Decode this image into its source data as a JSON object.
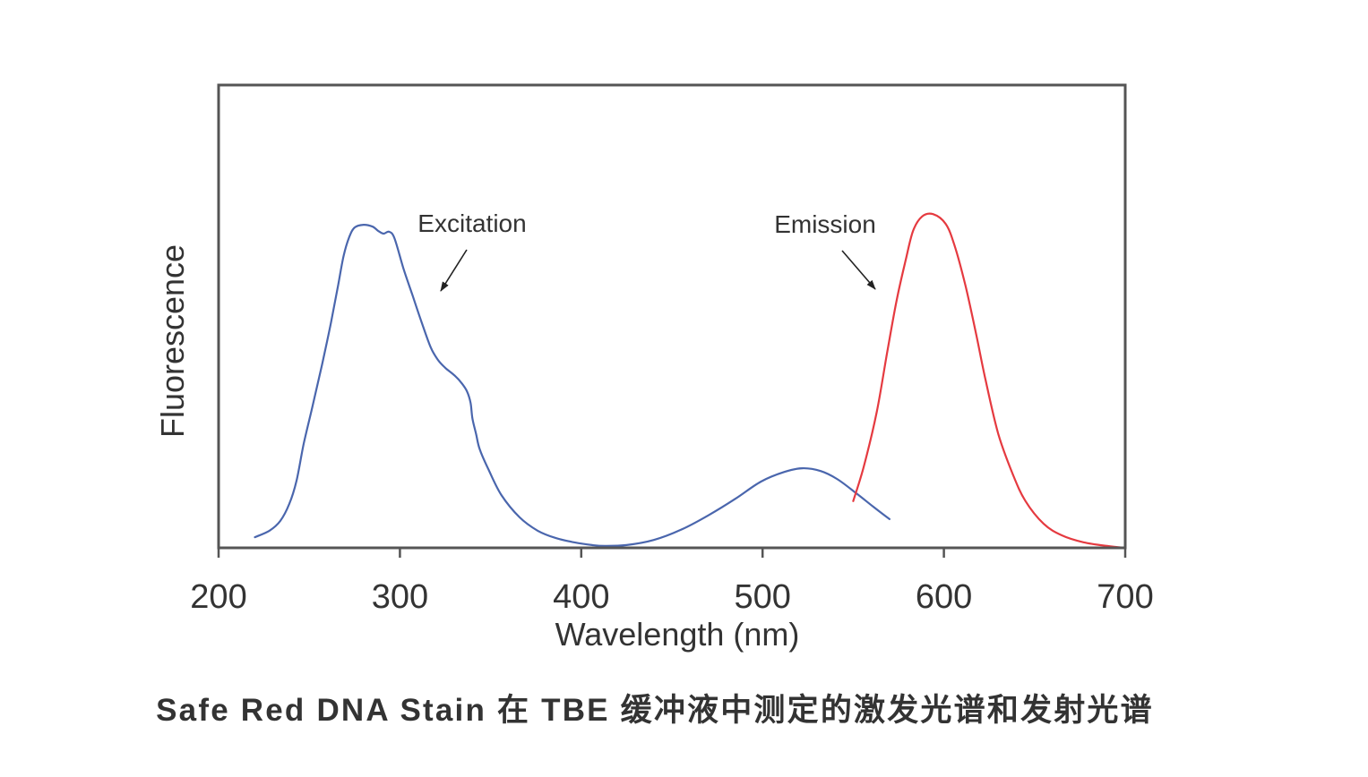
{
  "chart_data": {
    "type": "line",
    "title": "Safe Red DNA Stain 在 TBE 缓冲液中测定的激发光谱和发射光谱",
    "xlabel": "Wavelength (nm)",
    "ylabel": "Fluorescence",
    "xlim": [
      200,
      700
    ],
    "ylim": [
      0,
      100
    ],
    "x_ticks": [
      200,
      300,
      400,
      500,
      600,
      700
    ],
    "grid": false,
    "legend": "none",
    "series": [
      {
        "name": "Excitation",
        "color": "#4a66ad",
        "x": [
          220,
          228,
          234,
          239,
          243,
          247,
          252,
          257,
          262,
          266,
          269,
          272,
          275,
          280,
          285,
          288,
          291,
          294,
          297,
          302,
          307,
          312,
          317,
          321,
          325,
          330,
          334,
          337,
          339,
          340,
          342,
          344,
          349,
          356,
          366,
          376,
          386,
          396,
          406,
          413,
          425,
          440,
          455,
          470,
          485,
          499,
          512,
          522,
          532,
          541,
          551,
          561,
          570
        ],
        "y": [
          2.3,
          3.7,
          5.8,
          9.5,
          14.5,
          22.6,
          30.9,
          39.5,
          48.7,
          56.9,
          63.2,
          67.1,
          69.2,
          69.8,
          69.4,
          68.5,
          67.9,
          68.3,
          66.9,
          60.3,
          54.5,
          48.7,
          43.3,
          40.6,
          38.9,
          37.3,
          35.6,
          33.8,
          31.3,
          27.9,
          24.6,
          21.3,
          16.8,
          11.4,
          6.6,
          3.7,
          2.1,
          1.2,
          0.6,
          0.4,
          0.6,
          1.7,
          3.9,
          7.0,
          10.6,
          14.3,
          16.4,
          17.2,
          16.6,
          14.9,
          12.0,
          8.9,
          6.2
        ]
      },
      {
        "name": "Emission",
        "color": "#e53a40",
        "x": [
          550,
          556,
          563,
          569,
          574,
          579,
          583,
          588,
          594,
          601,
          606,
          612,
          618,
          623,
          630,
          638,
          645,
          655,
          665,
          677,
          690,
          700
        ],
        "y": [
          10.1,
          17.8,
          29.4,
          42.9,
          53.6,
          62.3,
          68.5,
          71.6,
          72.1,
          70.0,
          65.2,
          56.5,
          45.8,
          36.2,
          24.6,
          15.9,
          10.1,
          5.2,
          2.7,
          1.2,
          0.4,
          0.0
        ]
      }
    ]
  }
}
